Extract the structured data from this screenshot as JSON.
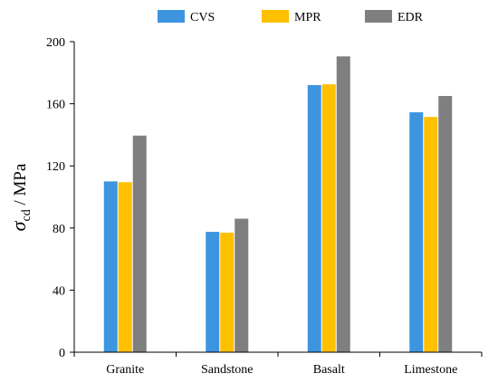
{
  "chart_data": {
    "type": "bar",
    "categories": [
      "Granite",
      "Sandstone",
      "Basalt",
      "Limestone"
    ],
    "series": [
      {
        "name": "CVS",
        "color": "#3d95e0",
        "values": [
          110,
          77.5,
          172,
          154.5
        ]
      },
      {
        "name": "MPR",
        "color": "#ffc000",
        "values": [
          109.5,
          77,
          172.5,
          151.5
        ]
      },
      {
        "name": "EDR",
        "color": "#7f7f7f",
        "values": [
          139.5,
          86,
          190.5,
          165
        ]
      }
    ],
    "ylim": [
      0,
      200
    ],
    "yticks": [
      0,
      40,
      80,
      120,
      160,
      200
    ],
    "ylabel": {
      "symbol": "σ",
      "subscript": "cd",
      "rest": " / MPa"
    },
    "legend_position": "top",
    "grid": false
  }
}
